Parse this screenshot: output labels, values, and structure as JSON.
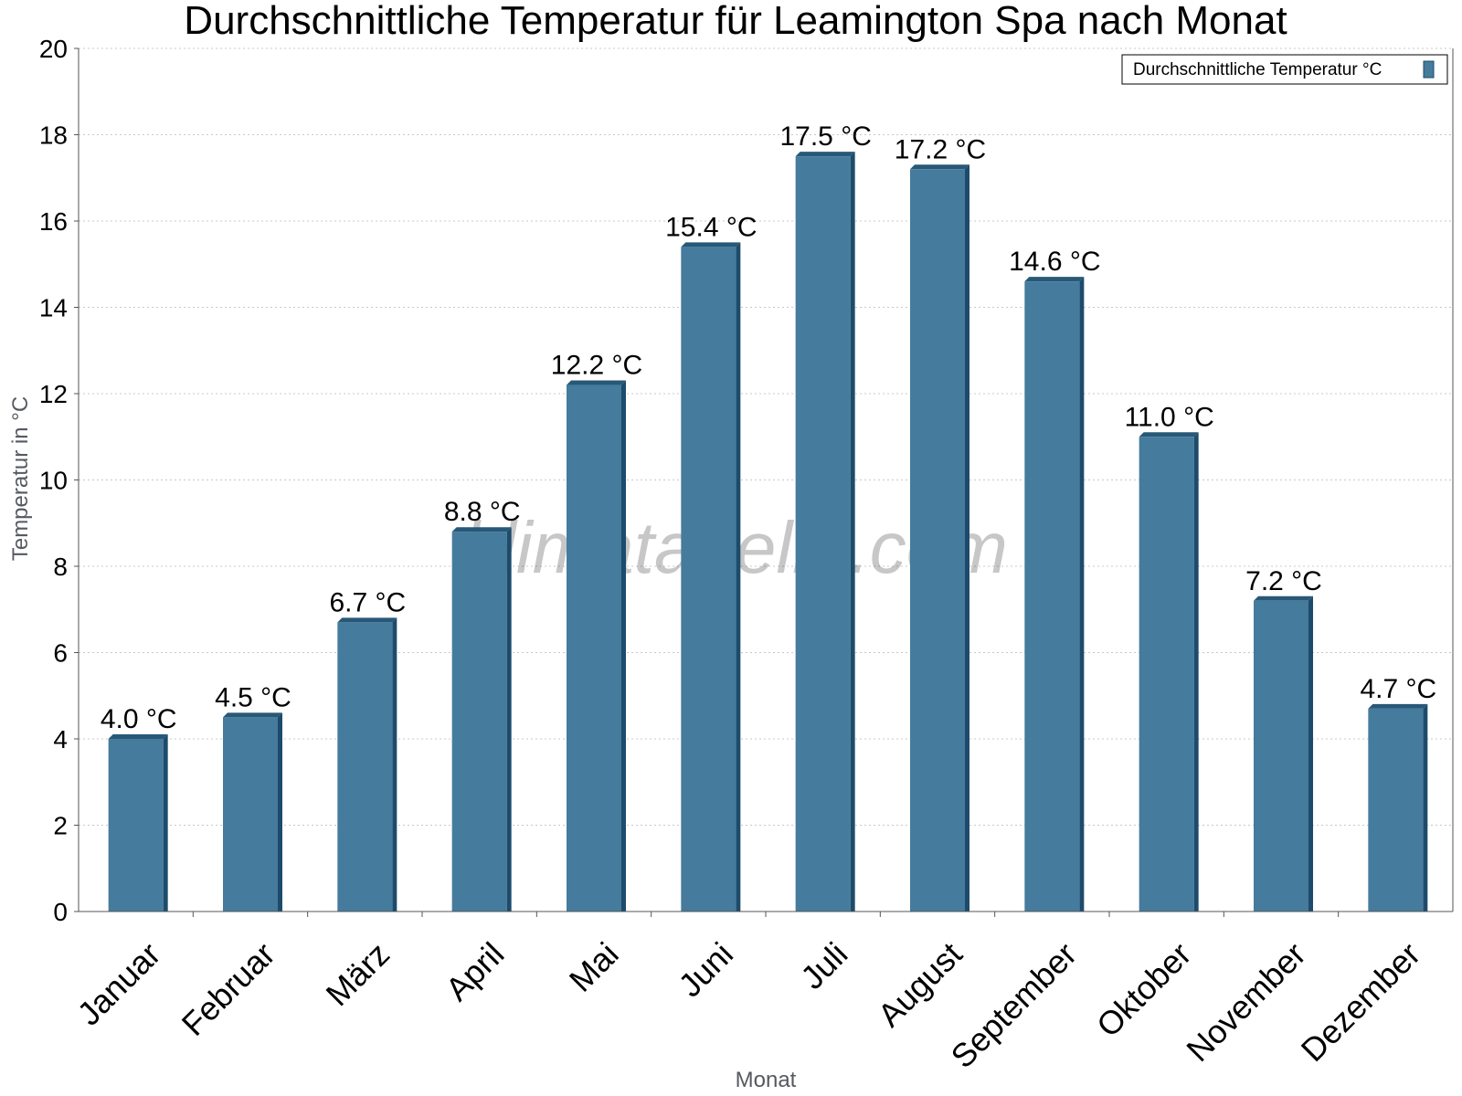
{
  "chart_data": {
    "type": "bar",
    "title": "Durchschnittliche Temperatur für Leamington Spa nach Monat",
    "xlabel": "Monat",
    "ylabel": "Temperatur in °C",
    "categories": [
      "Januar",
      "Februar",
      "März",
      "April",
      "Mai",
      "Juni",
      "Juli",
      "August",
      "September",
      "Oktober",
      "November",
      "Dezember"
    ],
    "series": [
      {
        "name": "Durchschnittliche Temperatur °C",
        "values": [
          4.0,
          4.5,
          6.7,
          8.8,
          12.2,
          15.4,
          17.5,
          17.2,
          14.6,
          11.0,
          7.2,
          4.7
        ],
        "data_labels": [
          "4.0 °C",
          "4.5 °C",
          "6.7 °C",
          "8.8 °C",
          "12.2 °C",
          "15.4 °C",
          "17.5 °C",
          "17.2 °C",
          "14.6 °C",
          "11.0 °C",
          "7.2 °C",
          "4.7 °C"
        ],
        "color": "#457b9d"
      }
    ],
    "ylim": [
      0,
      20
    ],
    "yticks": [
      "0",
      "2",
      "4",
      "6",
      "8",
      "10",
      "12",
      "14",
      "16",
      "18",
      "20"
    ],
    "grid": true,
    "legend_position": "top-right"
  },
  "watermark": "klimatabelle.com",
  "colors": {
    "bar": "#457b9d",
    "bar_side": "#1d4b6b",
    "bar_top": "#285878",
    "grid": "#c8c8c8",
    "axis": "#555555"
  }
}
